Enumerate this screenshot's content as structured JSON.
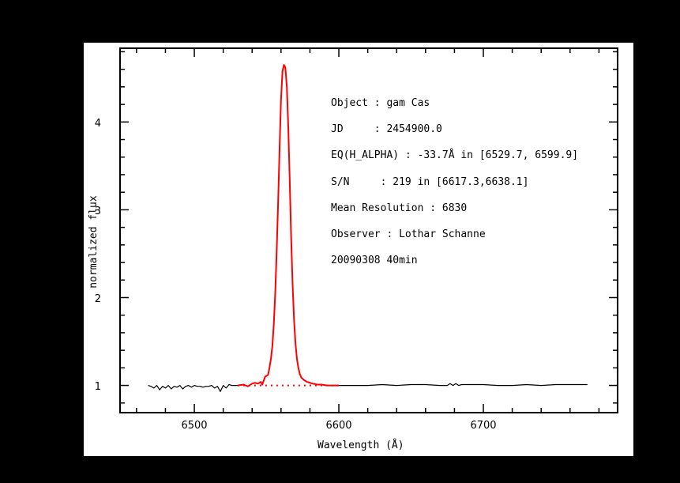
{
  "chart_data": {
    "type": "line",
    "title": "",
    "xlabel": "Wavelength (Å)",
    "ylabel": "normalized flux",
    "xlim": [
      6448.6,
      6792.9
    ],
    "ylim": [
      0.69,
      4.84
    ],
    "x_major_ticks": [
      6500,
      6600,
      6700
    ],
    "x_minor_step": 20,
    "y_major_ticks": [
      1,
      2,
      3,
      4
    ],
    "y_minor_step": 0.2,
    "grid": false,
    "legend": null,
    "series": [
      {
        "name": "spectrum-continuum",
        "color": "#000000",
        "style": "solid",
        "x": [
          6468,
          6470,
          6472,
          6474,
          6476,
          6478,
          6480,
          6482,
          6484,
          6486,
          6488,
          6490,
          6492,
          6494,
          6496,
          6498,
          6500,
          6502,
          6504,
          6506,
          6508,
          6510,
          6512,
          6514,
          6516,
          6518,
          6520,
          6522,
          6524,
          6526,
          6528,
          6530
        ],
        "y": [
          1.0,
          0.99,
          0.97,
          1.0,
          0.95,
          0.99,
          0.97,
          1.0,
          0.96,
          0.99,
          0.98,
          1.0,
          0.96,
          0.99,
          1.0,
          0.98,
          1.0,
          0.99,
          0.99,
          0.98,
          0.99,
          0.99,
          1.0,
          0.97,
          0.99,
          0.93,
          1.0,
          0.97,
          1.01,
          1.0,
          1.0,
          1.0
        ]
      },
      {
        "name": "spectrum-h-alpha-region",
        "color": "#ff0000",
        "style": "solid",
        "x": [
          6530,
          6534,
          6537,
          6540,
          6542,
          6544,
          6546,
          6547,
          6549,
          6551,
          6552,
          6553,
          6554,
          6555,
          6556,
          6557,
          6558,
          6559,
          6560,
          6561,
          6562,
          6563,
          6564,
          6565,
          6566,
          6567,
          6568,
          6569,
          6570,
          6571,
          6572,
          6573,
          6574,
          6576,
          6578,
          6580,
          6582,
          6585,
          6588,
          6592,
          6596,
          6600
        ],
        "y": [
          1.0,
          1.01,
          0.99,
          1.02,
          1.03,
          1.02,
          1.04,
          1.01,
          1.1,
          1.12,
          1.2,
          1.3,
          1.45,
          1.7,
          2.05,
          2.55,
          3.1,
          3.7,
          4.25,
          4.58,
          4.65,
          4.62,
          4.4,
          3.95,
          3.35,
          2.7,
          2.15,
          1.75,
          1.48,
          1.3,
          1.2,
          1.13,
          1.09,
          1.06,
          1.04,
          1.03,
          1.02,
          1.01,
          1.01,
          1.0,
          1.0,
          1.0
        ]
      },
      {
        "name": "continuum-fit-dotted",
        "color": "#ff0000",
        "style": "dotted",
        "x": [
          6530,
          6600
        ],
        "y": [
          1.0,
          1.0
        ]
      },
      {
        "name": "spectrum-red-continuum",
        "color": "#000000",
        "style": "solid",
        "x": [
          6600,
          6610,
          6620,
          6630,
          6640,
          6650,
          6660,
          6670,
          6675,
          6677,
          6679,
          6681,
          6683,
          6685,
          6690,
          6700,
          6710,
          6720,
          6730,
          6740,
          6750,
          6760,
          6772
        ],
        "y": [
          1.0,
          1.0,
          1.0,
          1.01,
          1.0,
          1.01,
          1.01,
          1.0,
          1.0,
          1.02,
          1.0,
          1.02,
          1.0,
          1.01,
          1.01,
          1.01,
          1.0,
          1.0,
          1.01,
          1.0,
          1.01,
          1.01,
          1.01
        ]
      }
    ],
    "annotations": [
      "Object : gam Cas",
      "JD     : 2454900.0",
      "EQ(H_ALPHA) : -33.7Å in [6529.7, 6599.9]",
      "S/N     : 219 in [6617.3,6638.1]",
      "Mean Resolution : 6830",
      "Observer : Lothar Schanne",
      "20090308 40min"
    ]
  },
  "labels": {
    "xlabel": "Wavelength (Å)",
    "ylabel": "normalized flux",
    "x_tick_labels": [
      "6500",
      "6600",
      "6700"
    ],
    "y_tick_labels": [
      "1",
      "2",
      "3",
      "4"
    ]
  },
  "info": {
    "object": "Object : gam Cas",
    "jd": "JD     : 2454900.0",
    "eq": "EQ(H_ALPHA) : -33.7Å in [6529.7, 6599.9]",
    "sn": "S/N     : 219 in [6617.3,6638.1]",
    "resolution": "Mean Resolution : 6830",
    "observer": "Observer : Lothar Schanne",
    "date": "20090308 40min"
  }
}
